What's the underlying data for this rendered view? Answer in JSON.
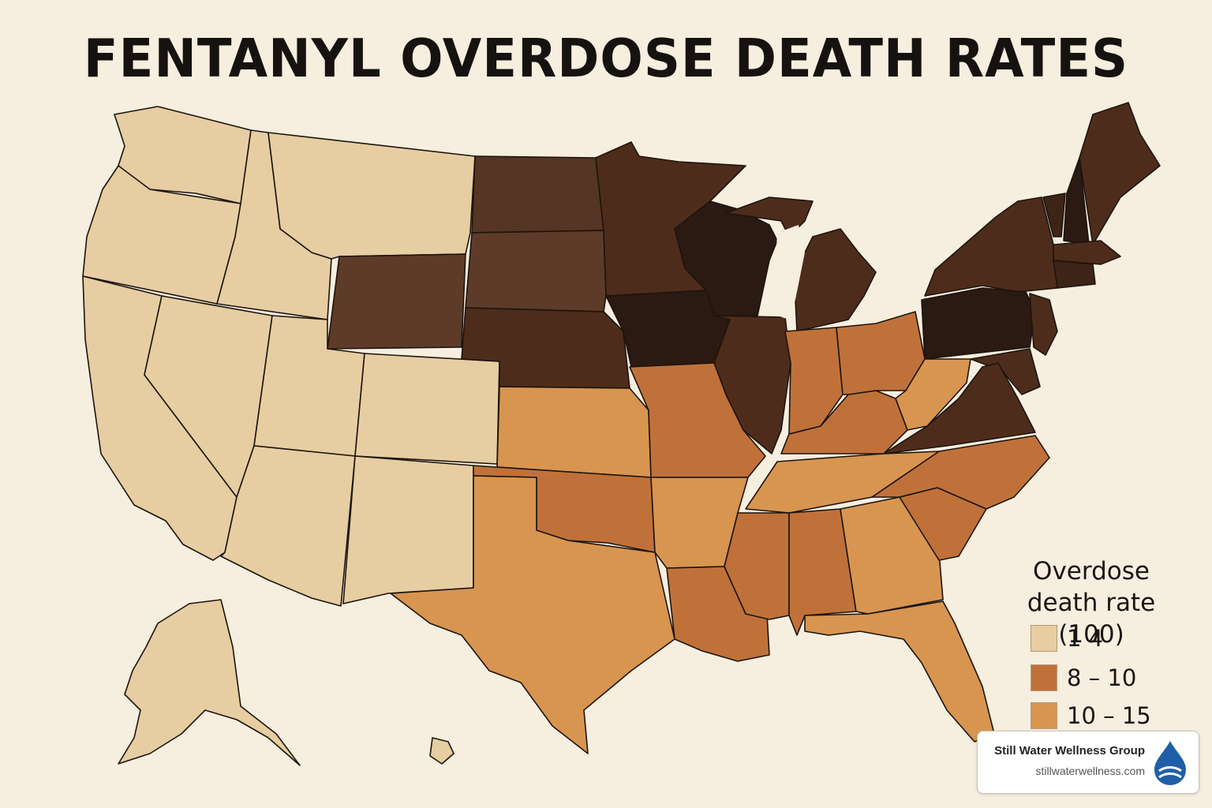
{
  "title": "FENTANYL OVERDOSE DEATH RATES",
  "legend": {
    "title_line1": "Overdose",
    "title_line2": "death rate (100)",
    "items": [
      {
        "label": "1  4",
        "color": "#e6cda2"
      },
      {
        "label": "8 – 10",
        "color": "#c0713a"
      },
      {
        "label": "10 – 15",
        "color": "#d89550"
      }
    ]
  },
  "colors": {
    "background": "#f6eedf",
    "light": "#e6cda2",
    "orange": "#d89550",
    "dark_orange": "#c0713a",
    "brown": "#5e3b29",
    "dark_brown": "#4e2c1b",
    "darkest": "#2b1a12"
  },
  "brand": {
    "name": "Still Water Wellness Group",
    "url": "stillwaterwellness.com",
    "logo_icon": "water-drop-icon"
  }
}
